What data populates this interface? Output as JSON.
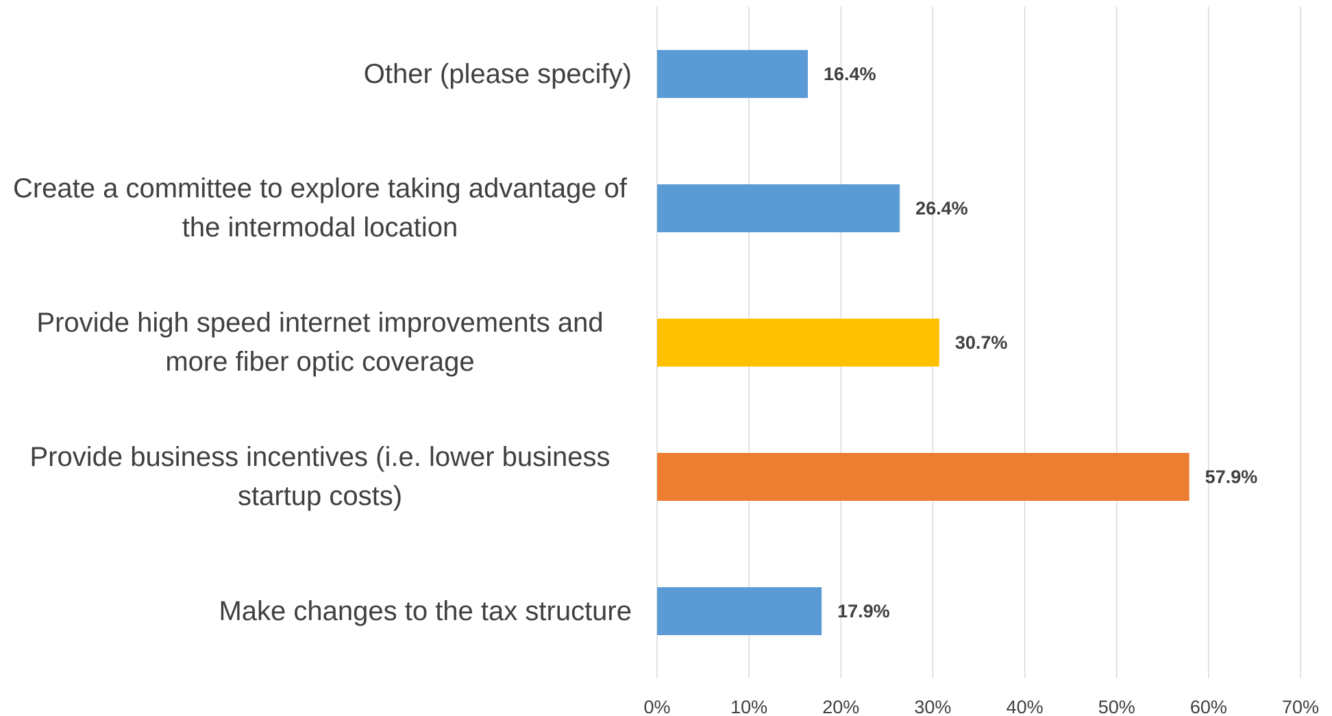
{
  "chart_data": {
    "type": "bar",
    "orientation": "horizontal",
    "categories": [
      "Other (please specify)",
      "Create a committee to explore taking advantage of the intermodal location",
      "Provide high speed internet improvements and more fiber optic coverage",
      "Provide business incentives (i.e. lower business startup costs)",
      "Make changes to the tax structure"
    ],
    "values": [
      16.4,
      26.4,
      30.7,
      57.9,
      17.9
    ],
    "value_labels": [
      "16.4%",
      "26.4%",
      "30.7%",
      "57.9%",
      "17.9%"
    ],
    "colors": [
      "#5b9bd5",
      "#5b9bd5",
      "#ffc000",
      "#ed7d31",
      "#5b9bd5"
    ],
    "xlim": [
      0,
      70
    ],
    "xticks": [
      {
        "value": 0,
        "label": "0%"
      },
      {
        "value": 10,
        "label": "10%"
      },
      {
        "value": 20,
        "label": "20%"
      },
      {
        "value": 30,
        "label": "30%"
      },
      {
        "value": 40,
        "label": "40%"
      },
      {
        "value": 50,
        "label": "50%"
      },
      {
        "value": 60,
        "label": "60%"
      },
      {
        "value": 70,
        "label": "70%"
      }
    ],
    "grid": true
  }
}
